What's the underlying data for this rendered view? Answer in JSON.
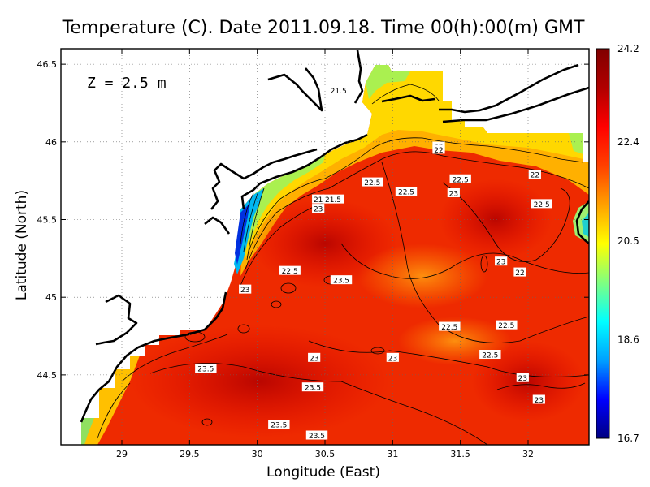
{
  "chart_data": {
    "type": "heatmap",
    "title": "Temperature (C). Date 2011.09.18. Time 00(h):00(m) GMT",
    "xlabel": "Longitude (East)",
    "ylabel": "Latitude (North)",
    "annotation": "Z = 2.5 m",
    "xlim": [
      28.55,
      32.45
    ],
    "ylim": [
      44.05,
      46.6
    ],
    "x_ticks": [
      {
        "value": 29,
        "label": "29"
      },
      {
        "value": 29.5,
        "label": "29.5"
      },
      {
        "value": 30,
        "label": "30"
      },
      {
        "value": 30.5,
        "label": "30.5"
      },
      {
        "value": 31,
        "label": "31"
      },
      {
        "value": 31.5,
        "label": "31.5"
      },
      {
        "value": 32,
        "label": "32"
      }
    ],
    "y_ticks": [
      {
        "value": 44.5,
        "label": "44.5"
      },
      {
        "value": 45,
        "label": "45"
      },
      {
        "value": 45.5,
        "label": "45.5"
      },
      {
        "value": 46,
        "label": "46"
      },
      {
        "value": 46.5,
        "label": "46.5"
      }
    ],
    "grid": true,
    "colorbar": {
      "min": 16.7,
      "max": 24.2,
      "placement": "right",
      "tick_labels": [
        {
          "value": 24.2,
          "label": "24.2"
        },
        {
          "value": 22.4,
          "label": "22.4"
        },
        {
          "value": 20.5,
          "label": "20.5"
        },
        {
          "value": 18.6,
          "label": "18.6"
        },
        {
          "value": 16.7,
          "label": "16.7"
        }
      ],
      "colors": [
        "#000080",
        "#0000ff",
        "#00a0ff",
        "#00ffff",
        "#80ff80",
        "#ffff00",
        "#ffa000",
        "#ff4000",
        "#ff0000",
        "#b00000",
        "#800000"
      ]
    },
    "contour_labels": [
      {
        "lon": 30.6,
        "lat": 46.33,
        "text": "21.5"
      },
      {
        "lon": 31.34,
        "lat": 45.97,
        "text": "22"
      },
      {
        "lon": 31.34,
        "lat": 45.95,
        "text": "22"
      },
      {
        "lon": 30.45,
        "lat": 45.63,
        "text": "21"
      },
      {
        "lon": 30.56,
        "lat": 45.63,
        "text": "21.5"
      },
      {
        "lon": 30.45,
        "lat": 45.57,
        "text": "23"
      },
      {
        "lon": 30.85,
        "lat": 45.74,
        "text": "22.5"
      },
      {
        "lon": 31.1,
        "lat": 45.68,
        "text": "22.5"
      },
      {
        "lon": 31.5,
        "lat": 45.76,
        "text": "22.5"
      },
      {
        "lon": 31.45,
        "lat": 45.67,
        "text": "23"
      },
      {
        "lon": 32.05,
        "lat": 45.79,
        "text": "22"
      },
      {
        "lon": 32.1,
        "lat": 45.6,
        "text": "22.5"
      },
      {
        "lon": 30.24,
        "lat": 45.17,
        "text": "22.5"
      },
      {
        "lon": 30.62,
        "lat": 45.11,
        "text": "23.5"
      },
      {
        "lon": 29.91,
        "lat": 45.05,
        "text": "23"
      },
      {
        "lon": 31.8,
        "lat": 45.23,
        "text": "23"
      },
      {
        "lon": 31.94,
        "lat": 45.16,
        "text": "22"
      },
      {
        "lon": 31.42,
        "lat": 44.81,
        "text": "22.5"
      },
      {
        "lon": 31.84,
        "lat": 44.82,
        "text": "22.5"
      },
      {
        "lon": 31.72,
        "lat": 44.63,
        "text": "22.5"
      },
      {
        "lon": 30.42,
        "lat": 44.61,
        "text": "23"
      },
      {
        "lon": 31.0,
        "lat": 44.61,
        "text": "23"
      },
      {
        "lon": 31.96,
        "lat": 44.48,
        "text": "23"
      },
      {
        "lon": 32.08,
        "lat": 44.34,
        "text": "23"
      },
      {
        "lon": 29.62,
        "lat": 44.54,
        "text": "23.5"
      },
      {
        "lon": 30.41,
        "lat": 44.42,
        "text": "23.5"
      },
      {
        "lon": 30.16,
        "lat": 44.18,
        "text": "23.5"
      },
      {
        "lon": 30.44,
        "lat": 44.11,
        "text": "23.5"
      }
    ]
  }
}
